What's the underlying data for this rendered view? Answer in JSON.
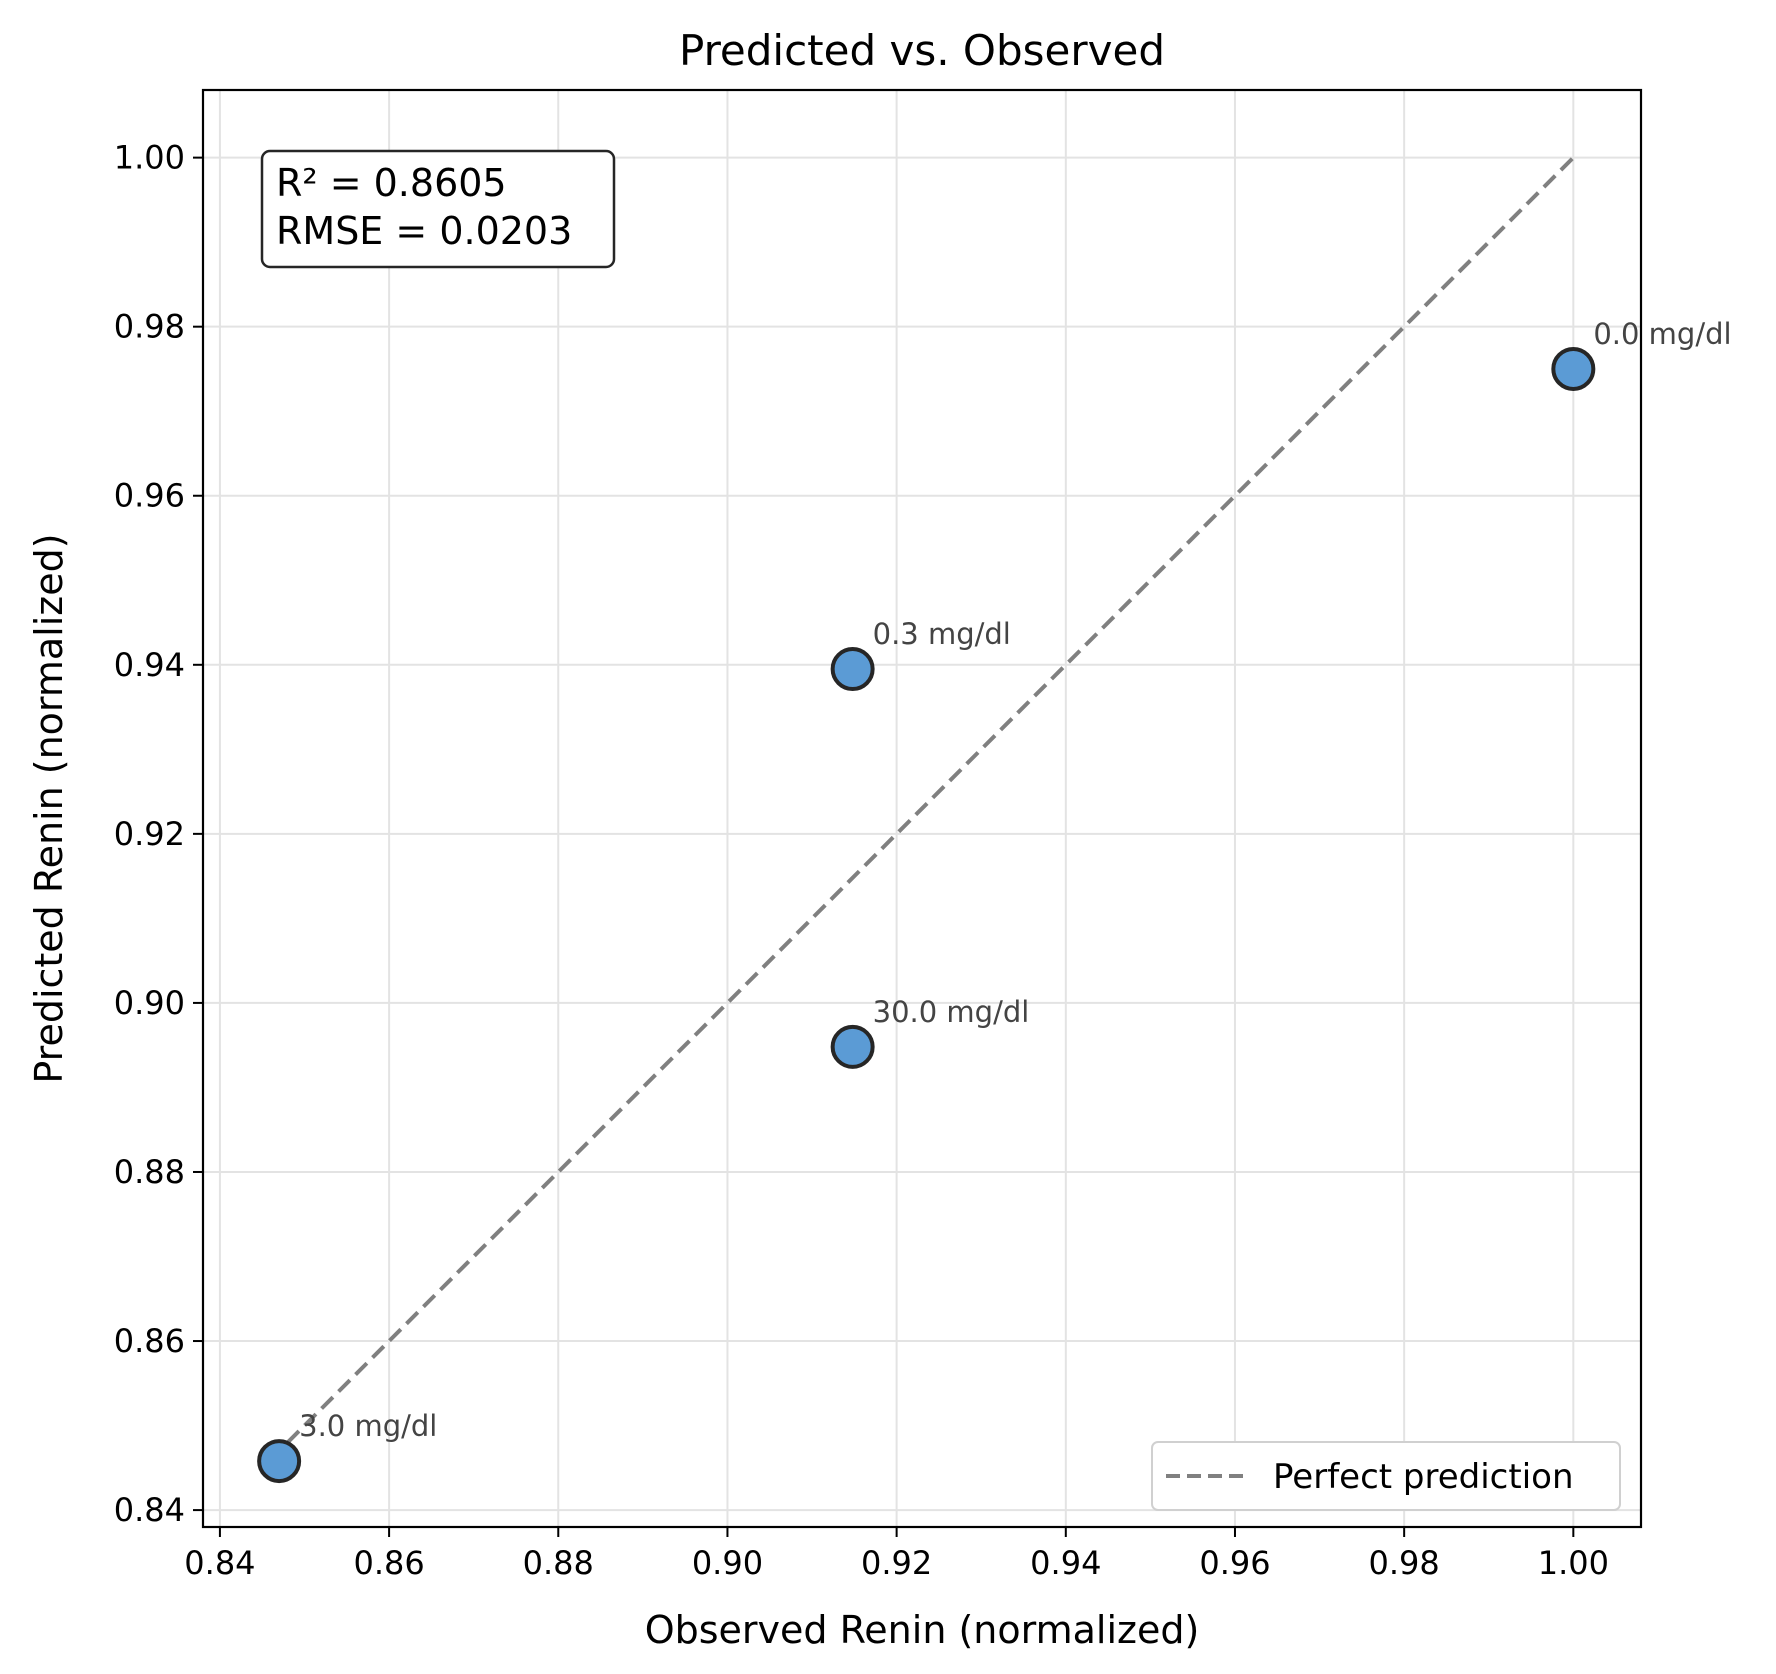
{
  "chart_data": {
    "type": "scatter",
    "title": "Predicted vs. Observed",
    "xlabel": "Observed Renin (normalized)",
    "ylabel": "Predicted Renin (normalized)",
    "xlim": [
      0.838,
      1.008
    ],
    "ylim": [
      0.838,
      1.008
    ],
    "xticks": [
      0.84,
      0.86,
      0.88,
      0.9,
      0.92,
      0.94,
      0.96,
      0.98,
      1.0
    ],
    "yticks": [
      0.84,
      0.86,
      0.88,
      0.9,
      0.92,
      0.94,
      0.96,
      0.98,
      1.0
    ],
    "xtick_labels": [
      "0.84",
      "0.86",
      "0.88",
      "0.90",
      "0.92",
      "0.94",
      "0.96",
      "0.98",
      "1.00"
    ],
    "ytick_labels": [
      "0.84",
      "0.86",
      "0.88",
      "0.90",
      "0.92",
      "0.94",
      "0.96",
      "0.98",
      "1.00"
    ],
    "grid": true,
    "points": [
      {
        "x": 1.0,
        "y": 0.975,
        "label": "0.0 mg/dl"
      },
      {
        "x": 0.9148,
        "y": 0.9395,
        "label": "0.3 mg/dl"
      },
      {
        "x": 0.847,
        "y": 0.8458,
        "label": "3.0 mg/dl"
      },
      {
        "x": 0.9148,
        "y": 0.8948,
        "label": "30.0 mg/dl"
      }
    ],
    "reference_line": {
      "x": [
        0.846,
        1.0
      ],
      "y": [
        0.846,
        1.0
      ],
      "name": "Perfect prediction",
      "style": "dashed"
    },
    "stats": {
      "r2": "R² = 0.8605",
      "rmse": "RMSE = 0.0203"
    },
    "legend": {
      "position": "lower-right",
      "entries": [
        "Perfect prediction"
      ]
    },
    "colors": {
      "marker_fill": "#5b9bd5",
      "marker_edge": "#262626",
      "reference_line": "#808080",
      "grid": "#e3e3e3"
    }
  }
}
